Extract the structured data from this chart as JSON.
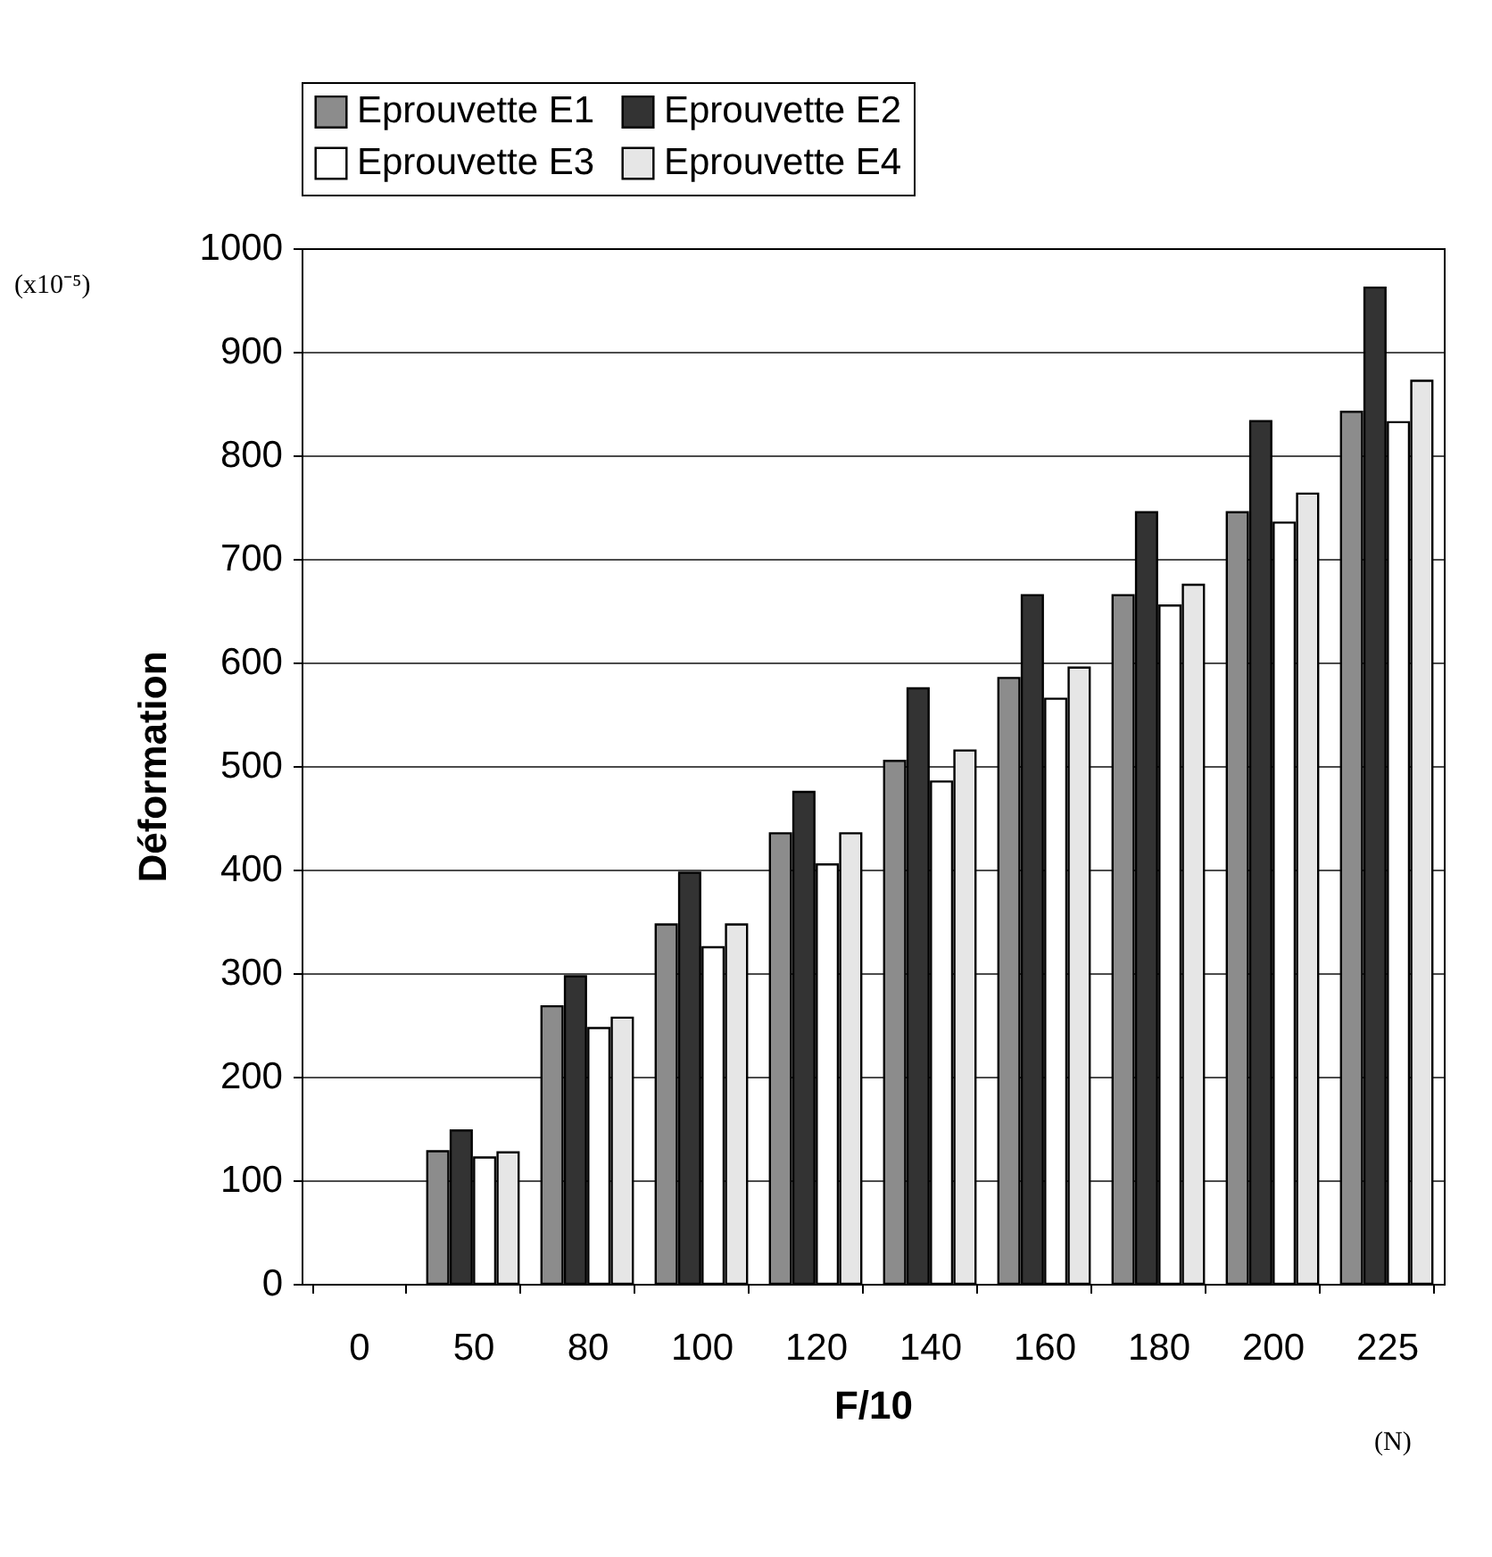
{
  "chart_data": {
    "type": "bar",
    "xlabel": "F/10",
    "ylabel": "Déformation",
    "categories": [
      "0",
      "50",
      "80",
      "100",
      "120",
      "140",
      "160",
      "180",
      "200",
      "225"
    ],
    "series": [
      {
        "name": "Eprouvette E1",
        "color": "#8c8c8c",
        "values": [
          null,
          128,
          268,
          347,
          435,
          505,
          585,
          665,
          745,
          842
        ]
      },
      {
        "name": "Eprouvette E2",
        "color": "#333333",
        "values": [
          null,
          148,
          297,
          397,
          475,
          575,
          665,
          745,
          833,
          962
        ]
      },
      {
        "name": "Eprouvette E3",
        "color": "#ffffff",
        "values": [
          null,
          122,
          247,
          325,
          405,
          485,
          565,
          655,
          735,
          832
        ]
      },
      {
        "name": "Eprouvette E4",
        "color": "#e6e6e6",
        "values": [
          null,
          127,
          257,
          347,
          435,
          515,
          595,
          675,
          763,
          872
        ]
      }
    ],
    "ylim": [
      0,
      1000
    ],
    "yticks": [
      0,
      100,
      200,
      300,
      400,
      500,
      600,
      700,
      800,
      900,
      1000
    ],
    "grid": "y",
    "legend": "top",
    "annotations": [
      "(x10⁻⁵)",
      "(N)"
    ]
  }
}
